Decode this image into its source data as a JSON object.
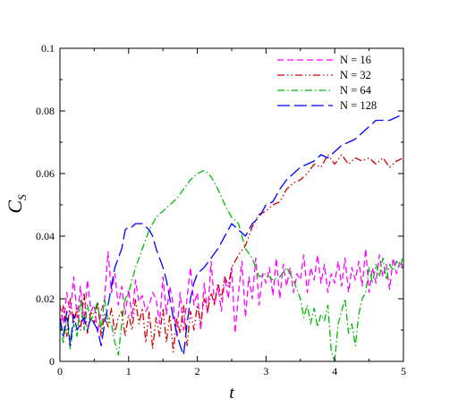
{
  "chart_data": {
    "type": "line",
    "xlabel": "t",
    "ylabel_main": "C",
    "ylabel_sub": "S",
    "xlim": [
      0,
      5
    ],
    "ylim": [
      0,
      0.1
    ],
    "xticks": [
      0,
      1,
      2,
      3,
      4,
      5
    ],
    "xtick_labels": [
      "0",
      "1",
      "2",
      "3",
      "4",
      "5"
    ],
    "yticks": [
      0,
      0.02,
      0.04,
      0.06,
      0.08,
      0.1
    ],
    "ytick_labels": [
      "0",
      "0.02",
      "0.04",
      "0.06",
      "0.08",
      "0.1"
    ],
    "grid": false,
    "legend_position": "top-right",
    "series": [
      {
        "name": "N = 16",
        "color": "#ff00ff",
        "dash": "dashed",
        "x": [
          0,
          0.05,
          0.1,
          0.15,
          0.2,
          0.25,
          0.3,
          0.35,
          0.4,
          0.45,
          0.5,
          0.55,
          0.6,
          0.65,
          0.7,
          0.75,
          0.8,
          0.85,
          0.9,
          0.95,
          1.0,
          1.05,
          1.1,
          1.15,
          1.2,
          1.25,
          1.3,
          1.35,
          1.4,
          1.45,
          1.5,
          1.55,
          1.6,
          1.65,
          1.7,
          1.75,
          1.8,
          1.85,
          1.9,
          1.95,
          2.0,
          2.05,
          2.1,
          2.15,
          2.2,
          2.25,
          2.3,
          2.35,
          2.4,
          2.45,
          2.5,
          2.55,
          2.6,
          2.65,
          2.7,
          2.75,
          2.8,
          2.85,
          2.9,
          2.95,
          3.0,
          3.05,
          3.1,
          3.15,
          3.2,
          3.25,
          3.3,
          3.35,
          3.4,
          3.45,
          3.5,
          3.55,
          3.6,
          3.65,
          3.7,
          3.75,
          3.8,
          3.85,
          3.9,
          3.95,
          4.0,
          4.05,
          4.1,
          4.15,
          4.2,
          4.25,
          4.3,
          4.35,
          4.4,
          4.45,
          4.5,
          4.55,
          4.6,
          4.65,
          4.7,
          4.75,
          4.8,
          4.85,
          4.9,
          4.95,
          5.0
        ],
        "y": [
          0.018,
          0.012,
          0.022,
          0.015,
          0.027,
          0.014,
          0.024,
          0.012,
          0.026,
          0.016,
          0.018,
          0.009,
          0.016,
          0.02,
          0.035,
          0.022,
          0.028,
          0.018,
          0.024,
          0.015,
          0.023,
          0.014,
          0.026,
          0.019,
          0.021,
          0.016,
          0.018,
          0.022,
          0.02,
          0.012,
          0.027,
          0.015,
          0.024,
          0.018,
          0.008,
          0.022,
          0.01,
          0.02,
          0.03,
          0.018,
          0.022,
          0.01,
          0.025,
          0.015,
          0.032,
          0.018,
          0.024,
          0.016,
          0.027,
          0.02,
          0.03,
          0.009,
          0.022,
          0.032,
          0.014,
          0.027,
          0.02,
          0.033,
          0.018,
          0.028,
          0.025,
          0.03,
          0.021,
          0.033,
          0.02,
          0.031,
          0.024,
          0.03,
          0.022,
          0.028,
          0.026,
          0.034,
          0.022,
          0.03,
          0.026,
          0.034,
          0.025,
          0.031,
          0.022,
          0.028,
          0.025,
          0.032,
          0.024,
          0.033,
          0.022,
          0.03,
          0.026,
          0.032,
          0.024,
          0.036,
          0.022,
          0.03,
          0.025,
          0.034,
          0.027,
          0.031,
          0.023,
          0.033,
          0.028,
          0.032,
          0.03
        ]
      },
      {
        "name": "N = 32",
        "color": "#cc0000",
        "dash": "dashdotdot",
        "x": [
          0,
          0.05,
          0.1,
          0.15,
          0.2,
          0.25,
          0.3,
          0.35,
          0.4,
          0.45,
          0.5,
          0.55,
          0.6,
          0.65,
          0.7,
          0.75,
          0.8,
          0.85,
          0.9,
          0.95,
          1.0,
          1.05,
          1.1,
          1.15,
          1.2,
          1.25,
          1.3,
          1.35,
          1.4,
          1.45,
          1.5,
          1.55,
          1.6,
          1.65,
          1.7,
          1.75,
          1.8,
          1.85,
          1.9,
          1.95,
          2.0,
          2.05,
          2.1,
          2.15,
          2.2,
          2.25,
          2.3,
          2.35,
          2.4,
          2.45,
          2.5,
          2.6,
          2.7,
          2.8,
          2.9,
          3.0,
          3.1,
          3.2,
          3.3,
          3.4,
          3.5,
          3.6,
          3.7,
          3.8,
          3.9,
          4.0,
          4.1,
          4.2,
          4.3,
          4.4,
          4.5,
          4.6,
          4.7,
          4.8,
          4.9,
          5.0
        ],
        "y": [
          0.01,
          0.018,
          0.008,
          0.02,
          0.012,
          0.017,
          0.01,
          0.022,
          0.009,
          0.016,
          0.012,
          0.019,
          0.008,
          0.015,
          0.011,
          0.017,
          0.009,
          0.014,
          0.016,
          0.008,
          0.015,
          0.01,
          0.02,
          0.012,
          0.017,
          0.006,
          0.016,
          0.004,
          0.014,
          0.008,
          0.017,
          0.006,
          0.015,
          0.003,
          0.014,
          0.009,
          0.018,
          0.005,
          0.016,
          0.01,
          0.018,
          0.012,
          0.02,
          0.016,
          0.022,
          0.018,
          0.025,
          0.02,
          0.027,
          0.024,
          0.03,
          0.034,
          0.037,
          0.043,
          0.047,
          0.048,
          0.05,
          0.051,
          0.055,
          0.057,
          0.058,
          0.06,
          0.063,
          0.062,
          0.066,
          0.063,
          0.066,
          0.063,
          0.065,
          0.064,
          0.065,
          0.063,
          0.065,
          0.062,
          0.064,
          0.065
        ]
      },
      {
        "name": "N = 64",
        "color": "#00bb00",
        "dash": "dashdot",
        "x": [
          0,
          0.05,
          0.1,
          0.15,
          0.2,
          0.25,
          0.3,
          0.35,
          0.4,
          0.45,
          0.5,
          0.55,
          0.6,
          0.65,
          0.7,
          0.75,
          0.8,
          0.85,
          0.9,
          0.95,
          1.0,
          1.1,
          1.2,
          1.3,
          1.4,
          1.5,
          1.6,
          1.7,
          1.8,
          1.9,
          2.0,
          2.1,
          2.2,
          2.3,
          2.4,
          2.5,
          2.6,
          2.7,
          2.8,
          2.9,
          3.0,
          3.1,
          3.2,
          3.3,
          3.4,
          3.5,
          3.55,
          3.6,
          3.65,
          3.7,
          3.75,
          3.8,
          3.85,
          3.9,
          3.95,
          4.0,
          4.05,
          4.1,
          4.15,
          4.2,
          4.25,
          4.3,
          4.35,
          4.4,
          4.45,
          4.5,
          4.55,
          4.6,
          4.65,
          4.7,
          4.75,
          4.8,
          4.85,
          4.9,
          4.95,
          5.0
        ],
        "y": [
          0.012,
          0.006,
          0.014,
          0.004,
          0.012,
          0.008,
          0.02,
          0.01,
          0.018,
          0.013,
          0.016,
          0.019,
          0.01,
          0.02,
          0.013,
          0.012,
          0.006,
          0.002,
          0.012,
          0.02,
          0.022,
          0.03,
          0.036,
          0.042,
          0.046,
          0.048,
          0.05,
          0.052,
          0.055,
          0.058,
          0.06,
          0.061,
          0.059,
          0.055,
          0.05,
          0.046,
          0.044,
          0.036,
          0.033,
          0.027,
          0.028,
          0.026,
          0.027,
          0.03,
          0.026,
          0.02,
          0.014,
          0.018,
          0.012,
          0.017,
          0.011,
          0.015,
          0.013,
          0.018,
          0.003,
          0.0,
          0.012,
          0.016,
          0.02,
          0.009,
          0.012,
          0.005,
          0.015,
          0.02,
          0.022,
          0.03,
          0.025,
          0.031,
          0.027,
          0.033,
          0.026,
          0.031,
          0.029,
          0.032,
          0.03,
          0.034
        ]
      },
      {
        "name": "N = 128",
        "color": "#0000ff",
        "dash": "longdash",
        "x": [
          0,
          0.05,
          0.1,
          0.15,
          0.2,
          0.25,
          0.3,
          0.35,
          0.4,
          0.45,
          0.5,
          0.55,
          0.6,
          0.65,
          0.7,
          0.75,
          0.8,
          0.85,
          0.9,
          0.95,
          1.0,
          1.05,
          1.1,
          1.15,
          1.2,
          1.25,
          1.3,
          1.35,
          1.4,
          1.45,
          1.5,
          1.55,
          1.6,
          1.65,
          1.7,
          1.75,
          1.8,
          1.85,
          1.9,
          1.95,
          2.0,
          2.1,
          2.2,
          2.3,
          2.4,
          2.5,
          2.6,
          2.7,
          2.8,
          2.9,
          3.0,
          3.1,
          3.2,
          3.3,
          3.4,
          3.5,
          3.6,
          3.7,
          3.8,
          3.9,
          4.0,
          4.1,
          4.2,
          4.3,
          4.4,
          4.5,
          4.6,
          4.7,
          4.8,
          4.9,
          5.0
        ],
        "y": [
          0.014,
          0.008,
          0.016,
          0.005,
          0.015,
          0.01,
          0.012,
          0.014,
          0.01,
          0.014,
          0.012,
          0.01,
          0.005,
          0.012,
          0.018,
          0.024,
          0.03,
          0.033,
          0.036,
          0.042,
          0.043,
          0.043,
          0.044,
          0.044,
          0.044,
          0.043,
          0.042,
          0.04,
          0.036,
          0.033,
          0.03,
          0.026,
          0.02,
          0.014,
          0.009,
          0.005,
          0.002,
          0.012,
          0.02,
          0.025,
          0.028,
          0.03,
          0.033,
          0.036,
          0.04,
          0.044,
          0.042,
          0.04,
          0.044,
          0.046,
          0.05,
          0.051,
          0.055,
          0.058,
          0.06,
          0.062,
          0.063,
          0.064,
          0.066,
          0.065,
          0.067,
          0.069,
          0.07,
          0.071,
          0.073,
          0.075,
          0.077,
          0.077,
          0.077,
          0.078,
          0.079
        ]
      }
    ]
  }
}
